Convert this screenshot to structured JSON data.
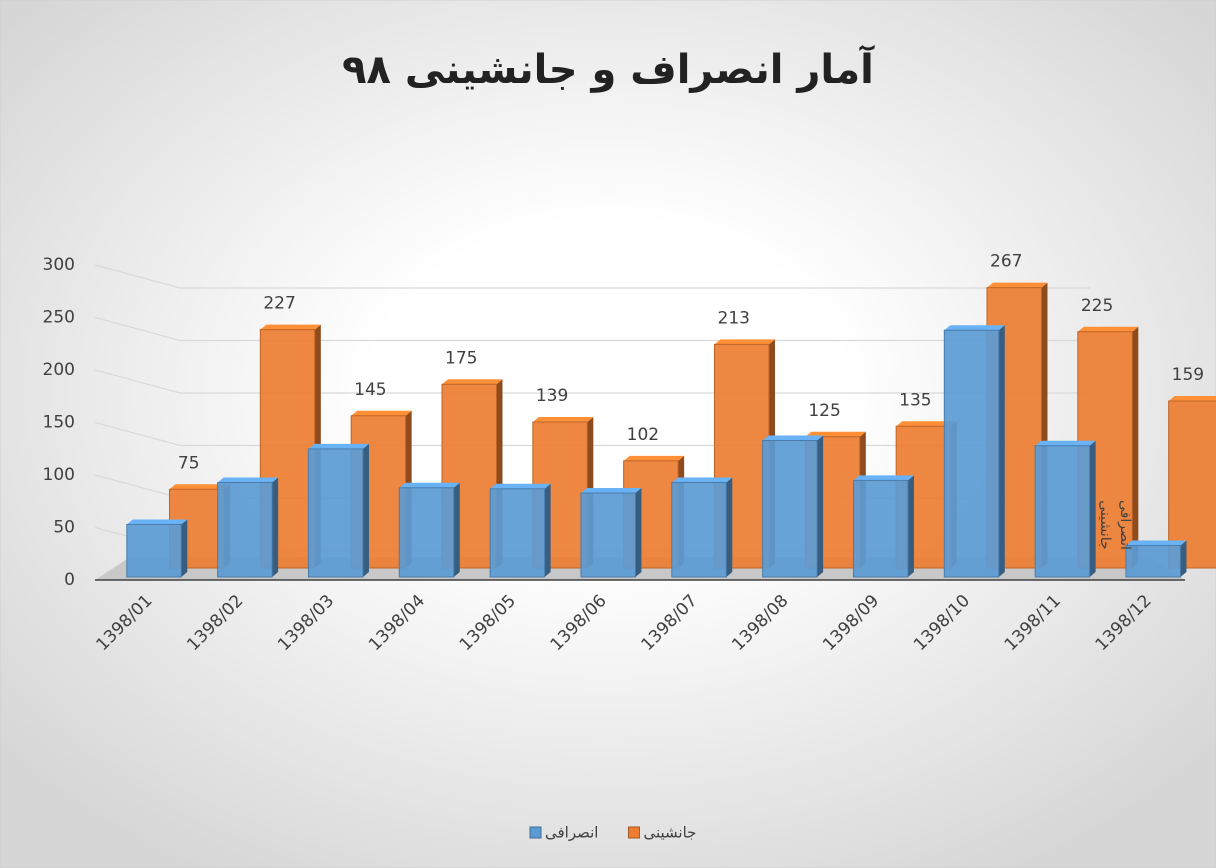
{
  "chart_data": {
    "type": "bar3d",
    "title": "آمار انصراف و جانشینی ۹۸",
    "categories": [
      "1398/01",
      "1398/02",
      "1398/03",
      "1398/04",
      "1398/05",
      "1398/06",
      "1398/07",
      "1398/08",
      "1398/09",
      "1398/10",
      "1398/11",
      "1398/12"
    ],
    "series": [
      {
        "name": "انصرافی",
        "color": "#5b9bd5",
        "values": [
          50,
          90,
          122,
          85,
          84,
          80,
          90,
          130,
          92,
          235,
          125,
          30
        ]
      },
      {
        "name": "جانشینی",
        "color": "#ed7d31",
        "values": [
          75,
          227,
          145,
          175,
          139,
          102,
          213,
          125,
          135,
          267,
          225,
          159
        ]
      }
    ],
    "data_labels_series": 1,
    "ylim": [
      0,
      300
    ],
    "yticks": [
      0,
      50,
      100,
      150,
      200,
      250,
      300
    ],
    "grid": true,
    "legend": "bottom"
  }
}
